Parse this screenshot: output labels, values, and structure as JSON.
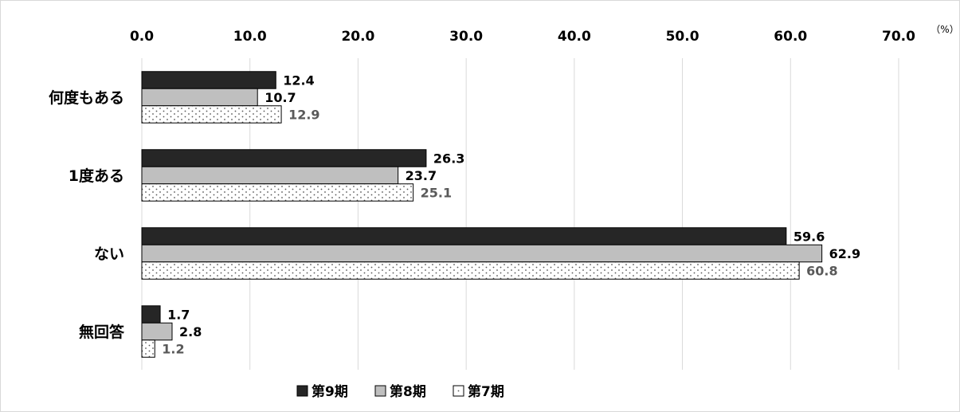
{
  "chart_data": {
    "type": "bar",
    "orientation": "horizontal",
    "categories": [
      "何度もある",
      "1度ある",
      "ない",
      "無回答"
    ],
    "series": [
      {
        "name": "第9期",
        "values": [
          12.4,
          26.3,
          59.6,
          1.7
        ],
        "color": "#262626",
        "pattern": "solid",
        "label_color": "#000000"
      },
      {
        "name": "第8期",
        "values": [
          10.7,
          23.7,
          62.9,
          2.8
        ],
        "color": "#bfbfbf",
        "pattern": "solid",
        "label_color": "#000000"
      },
      {
        "name": "第7期",
        "values": [
          12.9,
          25.1,
          60.8,
          1.2
        ],
        "color": "#ffffff",
        "pattern": "dots",
        "label_color": "#595959"
      }
    ],
    "xlim": [
      0,
      70
    ],
    "x_ticks": [
      "0.0",
      "10.0",
      "20.0",
      "30.0",
      "40.0",
      "50.0",
      "60.0",
      "70.0"
    ],
    "x_unit": "（%）",
    "x_axis_position": "top",
    "grid": true,
    "legend_position": "bottom",
    "legend_markers": [
      "■",
      "■",
      "□"
    ]
  }
}
